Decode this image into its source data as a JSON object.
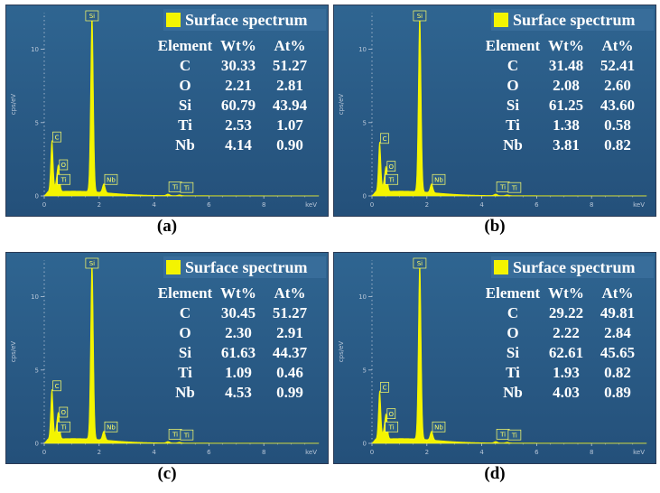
{
  "colors": {
    "background": "#2b5d87",
    "spectrum": "#f4f400",
    "text": "#ffffff",
    "axis": "#b8c6d8"
  },
  "chart_data": [
    {
      "type": "area",
      "panel_label": "(a)",
      "legend": "Surface spectrum",
      "xlabel": "keV",
      "ylabel": "cps/eV",
      "xlim": [
        0,
        10
      ],
      "ylim": [
        0,
        12.5
      ],
      "x_ticks": [
        "0",
        "2",
        "4",
        "6",
        "8"
      ],
      "y_ticks": [
        "0",
        "5",
        "10"
      ],
      "peaks": [
        {
          "label": "C",
          "x": 0.28,
          "y": 3.5
        },
        {
          "label": "O",
          "x": 0.52,
          "y": 1.6
        },
        {
          "label": "Ti",
          "x": 0.45,
          "y": 0.6
        },
        {
          "label": "Si",
          "x": 1.74,
          "y": 12.2
        },
        {
          "label": "Nb",
          "x": 2.17,
          "y": 0.6
        },
        {
          "label": "Ti",
          "x": 4.51,
          "y": 0.1
        },
        {
          "label": "Ti",
          "x": 4.93,
          "y": 0.05
        }
      ],
      "table": {
        "headers": [
          "Element",
          "Wt%",
          "At%"
        ],
        "rows": [
          [
            "C",
            "30.33",
            "51.27"
          ],
          [
            "O",
            "2.21",
            "2.81"
          ],
          [
            "Si",
            "60.79",
            "43.94"
          ],
          [
            "Ti",
            "2.53",
            "1.07"
          ],
          [
            "Nb",
            "4.14",
            "0.90"
          ]
        ]
      }
    },
    {
      "type": "area",
      "panel_label": "(b)",
      "legend": "Surface spectrum",
      "xlabel": "keV",
      "ylabel": "cps/eV",
      "xlim": [
        0,
        10
      ],
      "ylim": [
        0,
        12.5
      ],
      "x_ticks": [
        "0",
        "2",
        "4",
        "6",
        "8"
      ],
      "y_ticks": [
        "0",
        "5",
        "10"
      ],
      "peaks": [
        {
          "label": "C",
          "x": 0.28,
          "y": 3.4
        },
        {
          "label": "O",
          "x": 0.52,
          "y": 1.5
        },
        {
          "label": "Ti",
          "x": 0.45,
          "y": 0.6
        },
        {
          "label": "Si",
          "x": 1.74,
          "y": 12.2
        },
        {
          "label": "Nb",
          "x": 2.17,
          "y": 0.6
        },
        {
          "label": "Ti",
          "x": 4.51,
          "y": 0.1
        },
        {
          "label": "Ti",
          "x": 4.93,
          "y": 0.05
        }
      ],
      "table": {
        "headers": [
          "Element",
          "Wt%",
          "At%"
        ],
        "rows": [
          [
            "C",
            "31.48",
            "52.41"
          ],
          [
            "O",
            "2.08",
            "2.60"
          ],
          [
            "Si",
            "61.25",
            "43.60"
          ],
          [
            "Ti",
            "1.38",
            "0.58"
          ],
          [
            "Nb",
            "3.81",
            "0.82"
          ]
        ]
      }
    },
    {
      "type": "area",
      "panel_label": "(c)",
      "legend": "Surface spectrum",
      "xlabel": "keV",
      "ylabel": "cps/eV",
      "xlim": [
        0,
        10
      ],
      "ylim": [
        0,
        12.5
      ],
      "x_ticks": [
        "0",
        "2",
        "4",
        "6",
        "8"
      ],
      "y_ticks": [
        "0",
        "5",
        "10"
      ],
      "peaks": [
        {
          "label": "C",
          "x": 0.28,
          "y": 3.4
        },
        {
          "label": "O",
          "x": 0.52,
          "y": 1.6
        },
        {
          "label": "Ti",
          "x": 0.45,
          "y": 0.6
        },
        {
          "label": "Si",
          "x": 1.74,
          "y": 12.2
        },
        {
          "label": "Nb",
          "x": 2.17,
          "y": 0.6
        },
        {
          "label": "Ti",
          "x": 4.51,
          "y": 0.1
        },
        {
          "label": "Ti",
          "x": 4.93,
          "y": 0.05
        }
      ],
      "table": {
        "headers": [
          "Element",
          "Wt%",
          "At%"
        ],
        "rows": [
          [
            "C",
            "30.45",
            "51.27"
          ],
          [
            "O",
            "2.30",
            "2.91"
          ],
          [
            "Si",
            "61.63",
            "44.37"
          ],
          [
            "Ti",
            "1.09",
            "0.46"
          ],
          [
            "Nb",
            "4.53",
            "0.99"
          ]
        ]
      }
    },
    {
      "type": "area",
      "panel_label": "(d)",
      "legend": "Surface spectrum",
      "xlabel": "keV",
      "ylabel": "cps/eV",
      "xlim": [
        0,
        10
      ],
      "ylim": [
        0,
        12.5
      ],
      "x_ticks": [
        "0",
        "2",
        "4",
        "6",
        "8"
      ],
      "y_ticks": [
        "0",
        "5",
        "10"
      ],
      "peaks": [
        {
          "label": "C",
          "x": 0.28,
          "y": 3.3
        },
        {
          "label": "O",
          "x": 0.52,
          "y": 1.5
        },
        {
          "label": "Ti",
          "x": 0.45,
          "y": 0.6
        },
        {
          "label": "Si",
          "x": 1.74,
          "y": 12.2
        },
        {
          "label": "Nb",
          "x": 2.17,
          "y": 0.6
        },
        {
          "label": "Ti",
          "x": 4.51,
          "y": 0.1
        },
        {
          "label": "Ti",
          "x": 4.93,
          "y": 0.05
        }
      ],
      "table": {
        "headers": [
          "Element",
          "Wt%",
          "At%"
        ],
        "rows": [
          [
            "C",
            "29.22",
            "49.81"
          ],
          [
            "O",
            "2.22",
            "2.84"
          ],
          [
            "Si",
            "62.61",
            "45.65"
          ],
          [
            "Ti",
            "1.93",
            "0.82"
          ],
          [
            "Nb",
            "4.03",
            "0.89"
          ]
        ]
      }
    }
  ]
}
